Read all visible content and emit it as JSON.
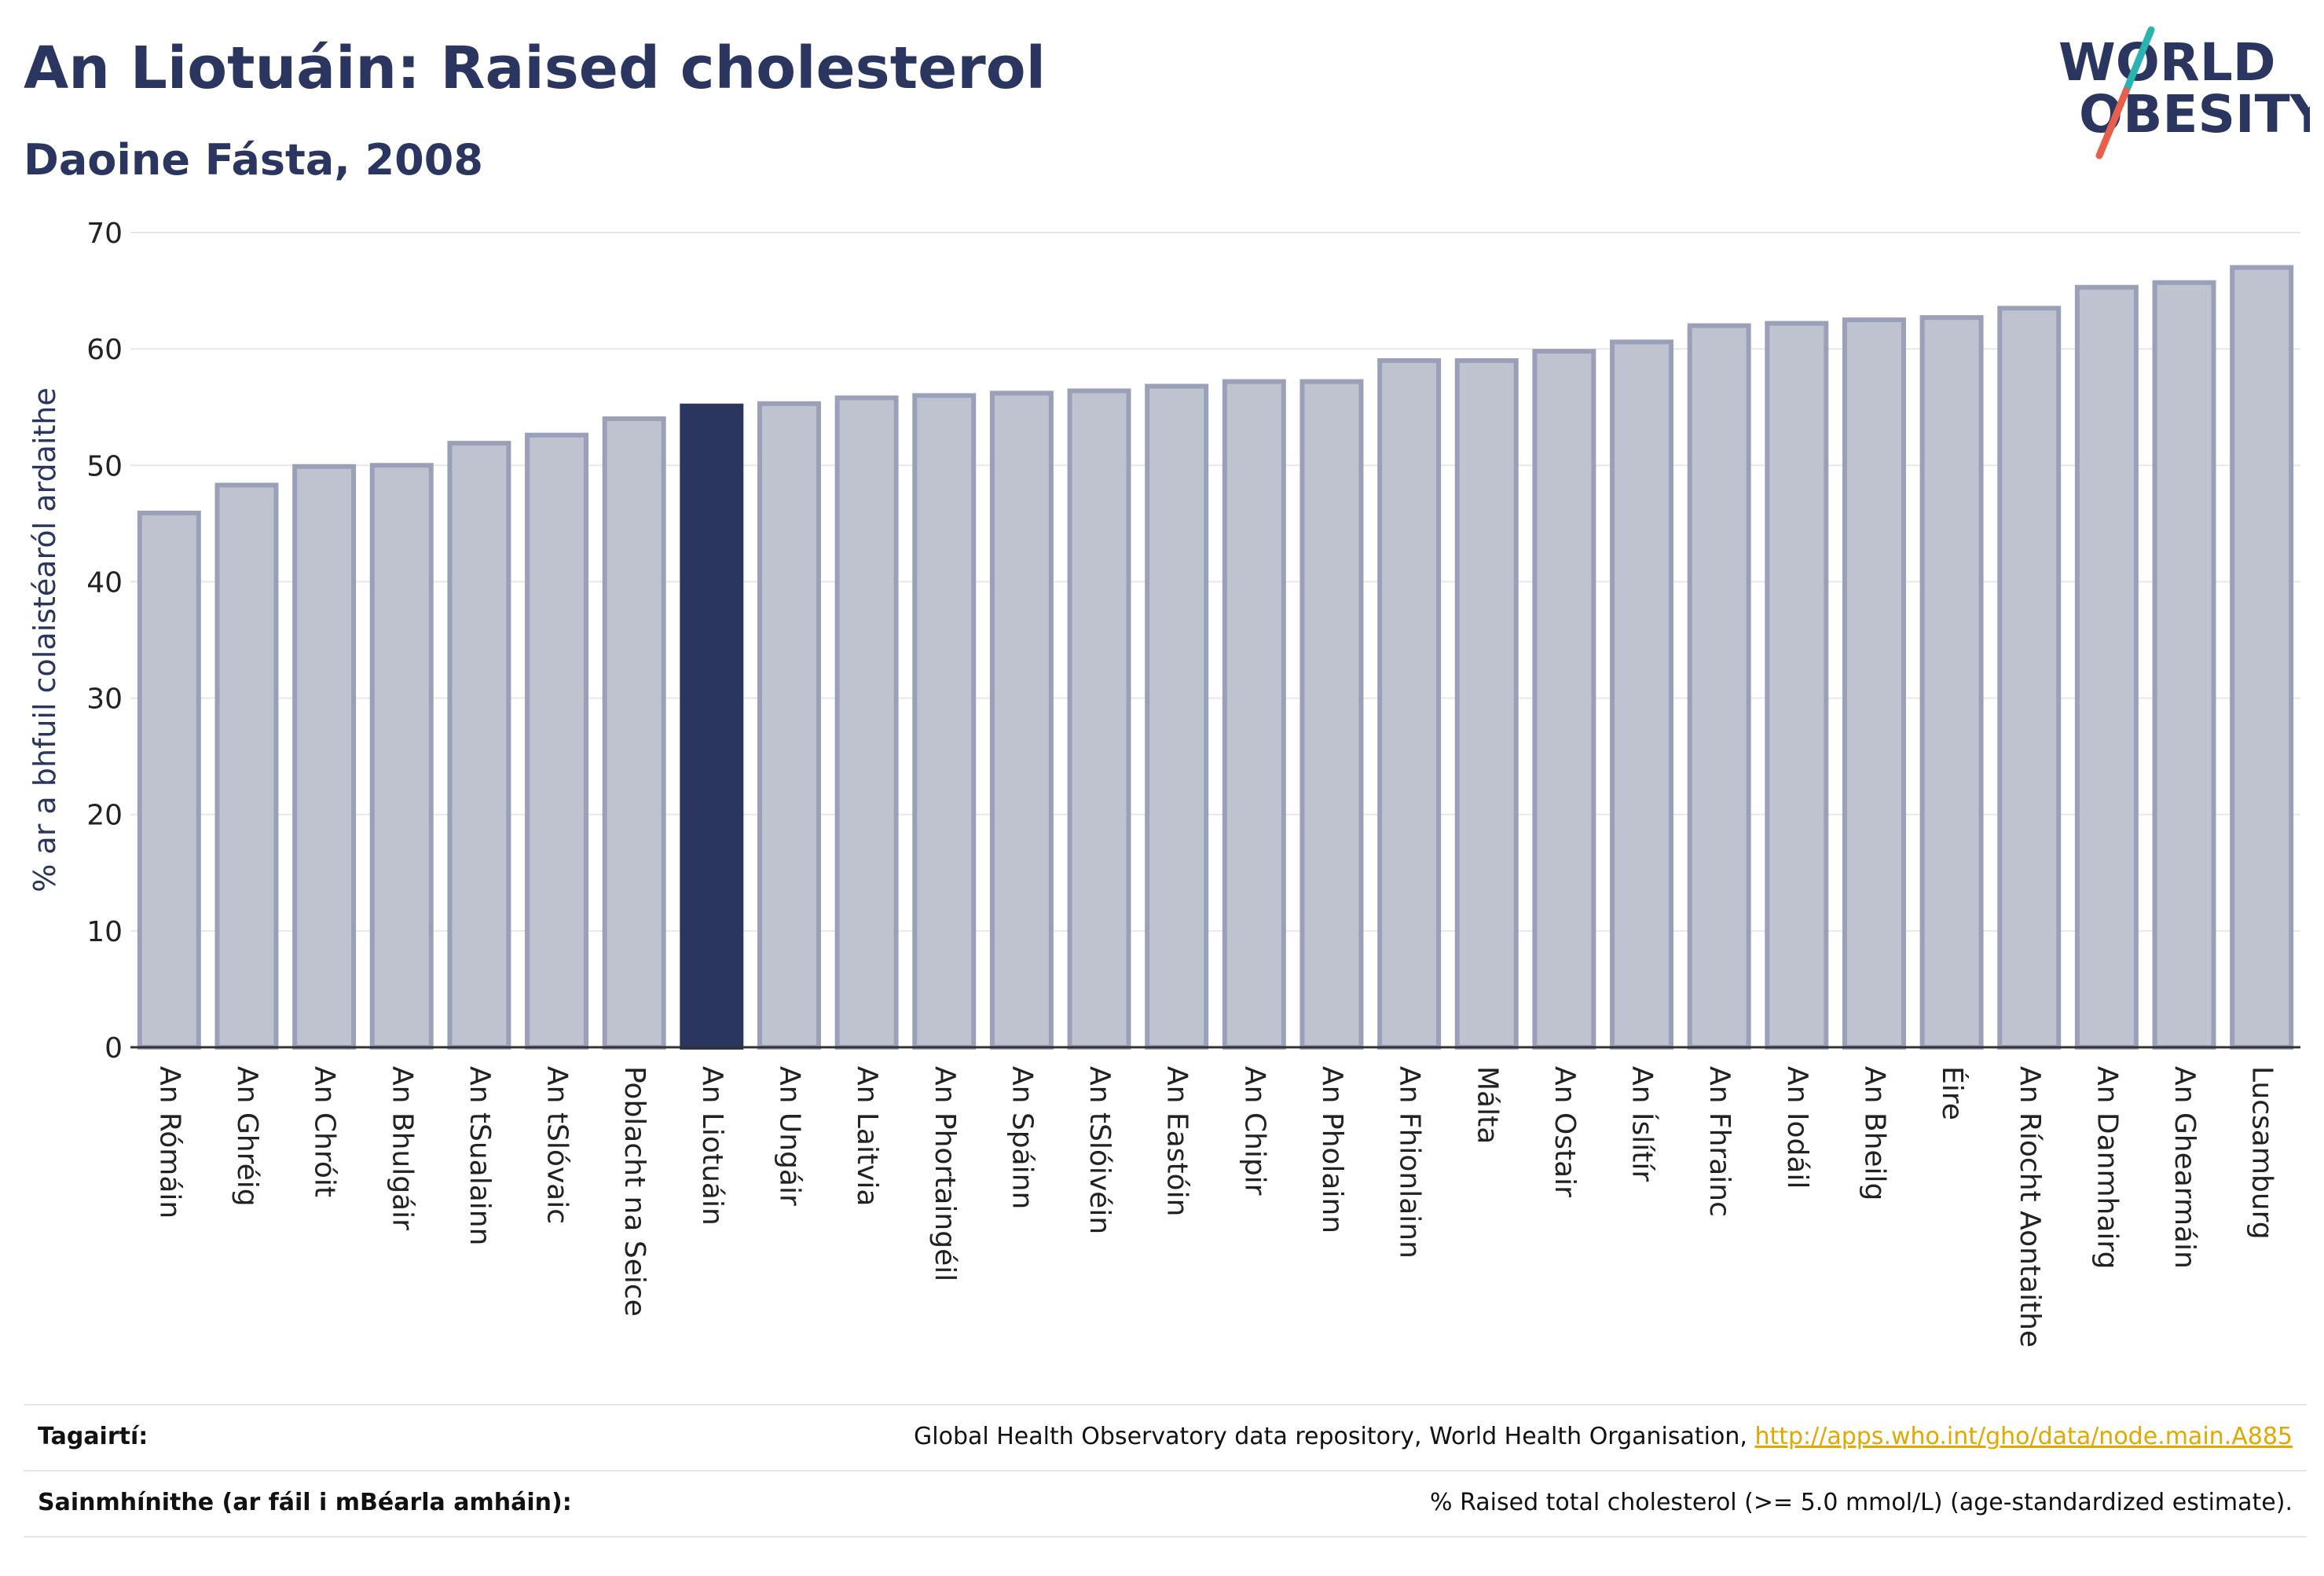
{
  "header": {
    "title": "An Liotuáin: Raised cholesterol",
    "subtitle": "Daoine Fásta, 2008"
  },
  "logo": {
    "line1": "WORLD",
    "line2": "OBESITY",
    "colors": {
      "text": "#2a3560",
      "slash_teal": "#2ab3b1",
      "slash_red": "#e8604c"
    }
  },
  "colors": {
    "highlight_bar": "#2a3560",
    "bar_fill": "#bfc3d0",
    "bar_stroke": "#9aa0b8",
    "grid": "#e6e8ee",
    "text": "#2a3560"
  },
  "chart_data": {
    "type": "bar",
    "ylabel": "% ar a bhfuil colaistéaról ardaithe",
    "xlabel": "",
    "ylim": [
      0,
      70
    ],
    "yticks": [
      0,
      10,
      20,
      30,
      40,
      50,
      60,
      70
    ],
    "grid": true,
    "highlight": "An Liotuáin",
    "categories": [
      "An Rómáin",
      "An Ghréig",
      "An Chróit",
      "An Bhulgáir",
      "An tSualainn",
      "An tSlóvaic",
      "Poblacht na Seice",
      "An Liotuáin",
      "An Ungáir",
      "An Laitvia",
      "An Phortaingéil",
      "An Spáinn",
      "An tSlóivéin",
      "An Eastóin",
      "An Chipir",
      "An Pholainn",
      "An Fhionlainn",
      "Málta",
      "An Ostair",
      "An Íslítír",
      "An Fhrainc",
      "An Iodáil",
      "An Bheilg",
      "Éire",
      "An Ríocht Aontaithe",
      "An Danmhairg",
      "An Ghearmáin",
      "Lucsamburg"
    ],
    "values": [
      45.9,
      48.3,
      49.9,
      50.0,
      51.9,
      52.6,
      54.0,
      55.1,
      55.3,
      55.8,
      56.0,
      56.2,
      56.4,
      56.8,
      57.2,
      57.2,
      59.0,
      59.0,
      59.8,
      60.6,
      62.0,
      62.2,
      62.5,
      62.7,
      63.5,
      65.3,
      65.7,
      67.0
    ]
  },
  "footer": {
    "references_label": "Tagairtí:",
    "references_text": "Global Health Observatory data repository, World Health Organisation, ",
    "references_link": "http://apps.who.int/gho/data/node.main.A885",
    "definitions_label": "Sainmhínithe (ar fáil i mBéarla amháin):",
    "definitions_text": "% Raised total cholesterol (>= 5.0 mmol/L) (age-standardized estimate)."
  }
}
